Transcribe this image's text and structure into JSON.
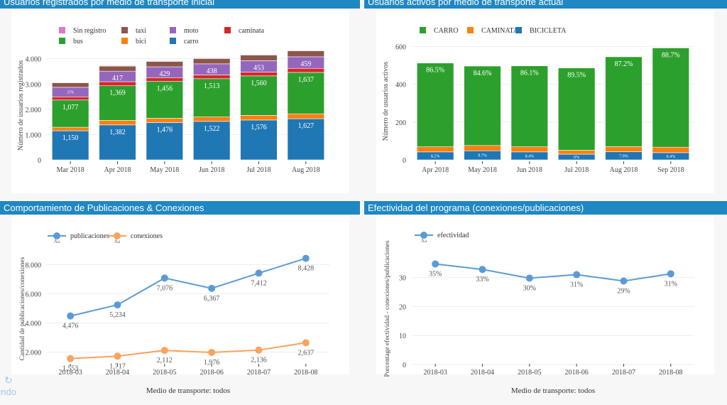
{
  "panels": [
    {
      "title": "Usuarios registrados por medio de transporte inicial"
    },
    {
      "title": "Usuarios activos por medio de transporte actual"
    },
    {
      "title": "Comportamiento de Publicaciones & Conexiones"
    },
    {
      "title": "Efectividad del programa (conexiones/publicaciones)"
    }
  ],
  "undo": {
    "label": "undo",
    "icon": "undo-icon"
  },
  "chart_data": [
    {
      "type": "bar",
      "stacked": true,
      "title": "Usuarios registrados por medio de transporte inicial",
      "ylabel": "Número de usuarios registrados",
      "xlabel": "",
      "ylim": [
        0,
        4300
      ],
      "yticks": [
        0,
        1000,
        2000,
        3000,
        4000
      ],
      "ytick_labels": [
        "0",
        "1.000",
        "2.000",
        "3.000",
        "4.000"
      ],
      "categories": [
        "Mar 2018",
        "Apr 2018",
        "May 2018",
        "Jun 2018",
        "Jul 2018",
        "Aug 2018"
      ],
      "legend": [
        "Sin registro",
        "taxi",
        "moto",
        "caminata",
        "bus",
        "bici",
        "carro"
      ],
      "legend_position": "top-left",
      "series": [
        {
          "name": "carro",
          "color": "#1f77b4",
          "values": [
            1150,
            1382,
            1476,
            1522,
            1576,
            1627
          ],
          "labels": [
            "1,150",
            "1,382",
            "1,476",
            "1,522",
            "1,576",
            "1,627"
          ]
        },
        {
          "name": "bici",
          "color": "#ff7f0e",
          "values": [
            140,
            180,
            170,
            175,
            185,
            195
          ],
          "labels": [
            "",
            "",
            "",
            "",
            "",
            ""
          ]
        },
        {
          "name": "bus",
          "color": "#2ca02c",
          "values": [
            1077,
            1369,
            1456,
            1513,
            1560,
            1637
          ],
          "labels": [
            "1,077",
            "1,369",
            "1,456",
            "1,513",
            "1,560",
            "1,637"
          ]
        },
        {
          "name": "caminata",
          "color": "#d62728",
          "values": [
            127,
            160,
            150,
            150,
            150,
            160
          ],
          "labels": [
            "",
            "",
            "",
            "",
            "",
            ""
          ]
        },
        {
          "name": "moto",
          "color": "#9467bd",
          "values": [
            376,
            417,
            429,
            438,
            453,
            459
          ],
          "labels": [
            "376",
            "417",
            "429",
            "438",
            "453",
            "459"
          ]
        },
        {
          "name": "taxi",
          "color": "#8c564b",
          "values": [
            180,
            200,
            210,
            210,
            220,
            230
          ],
          "labels": [
            "",
            "",
            "",
            "",
            "",
            ""
          ]
        },
        {
          "name": "Sin registro",
          "color": "#e377c2",
          "values": [
            20,
            25,
            25,
            25,
            25,
            25
          ],
          "labels": [
            "",
            "",
            "",
            "",
            "",
            ""
          ]
        }
      ]
    },
    {
      "type": "bar",
      "stacked": true,
      "title": "Usuarios activos por medio de transporte actual",
      "ylabel": "Número de usuarios activos",
      "xlabel": "",
      "ylim": [
        0,
        620
      ],
      "yticks": [
        0,
        200,
        400,
        600
      ],
      "ytick_labels": [
        "0",
        "200",
        "400",
        "600"
      ],
      "categories": [
        "Apr 2018",
        "May 2018",
        "Jun 2018",
        "Jul 2018",
        "Aug 2018",
        "Sep 2018"
      ],
      "legend": [
        "CARRO",
        "CAMINATA",
        "BICICLETA"
      ],
      "legend_position": "top-left",
      "series": [
        {
          "name": "BICICLETA",
          "color": "#1f77b4",
          "values": [
            42,
            48,
            42,
            30,
            43,
            38
          ],
          "labels": [
            "8.2%",
            "9.7%",
            "8.4%",
            "6%",
            "7.9%",
            "6.4%"
          ]
        },
        {
          "name": "CAMINATA",
          "color": "#ff7f0e",
          "values": [
            27,
            28,
            27,
            21,
            27,
            29
          ],
          "labels": [
            "",
            "",
            "",
            "",
            "",
            ""
          ]
        },
        {
          "name": "CARRO",
          "color": "#2ca02c",
          "values": [
            443,
            420,
            428,
            435,
            475,
            525
          ],
          "labels": [
            "86.5%",
            "84.6%",
            "86.1%",
            "89.5%",
            "87.2%",
            "88.7%"
          ]
        }
      ]
    },
    {
      "type": "line",
      "title": "Comportamiento de Publicaciones & Conexiones",
      "ylabel": "Cantidad de publicaciones/conexiones",
      "xlabel": "Medio de transporte: todos",
      "ylim": [
        1000,
        8700
      ],
      "yticks": [
        2000,
        4000,
        6000,
        8000
      ],
      "ytick_labels": [
        "2.000",
        "4.000",
        "6.000",
        "8.000"
      ],
      "x": [
        "2018-03",
        "2018-04",
        "2018-05",
        "2018-06",
        "2018-07",
        "2018-08"
      ],
      "legend_position": "top-left",
      "legend_sub": "Aa",
      "series": [
        {
          "name": "publicaciones",
          "color": "#5b9bd5",
          "values": [
            4476,
            5234,
            7076,
            6367,
            7412,
            8428
          ],
          "labels": [
            "4,476",
            "5,234",
            "7,076",
            "6,367",
            "7,412",
            "8,428"
          ]
        },
        {
          "name": "conexiones",
          "color": "#f9a35c",
          "values": [
            1553,
            1717,
            2112,
            1976,
            2136,
            2637
          ],
          "labels": [
            "1,553",
            "1,717",
            "2,112",
            "1,976",
            "2,136",
            "2,637"
          ]
        }
      ]
    },
    {
      "type": "line",
      "title": "Efectividad del programa (conexiones/publicaciones)",
      "ylabel": "Porcentage efectividad - conexiones/publicaciones",
      "xlabel": "Medio de transporte: todos",
      "ylim": [
        0,
        38
      ],
      "yticks": [
        0,
        10,
        20,
        30
      ],
      "ytick_labels": [
        "0",
        "10",
        "20",
        "30"
      ],
      "x": [
        "2018-03",
        "2018-04",
        "2018-05",
        "2018-06",
        "2018-07",
        "2018-08"
      ],
      "legend_position": "top-left",
      "legend_sub": "Aa",
      "series": [
        {
          "name": "efectividad",
          "color": "#5b9bd5",
          "values": [
            34.7,
            32.8,
            29.8,
            31.0,
            28.8,
            31.3
          ],
          "labels": [
            "35%",
            "33%",
            "30%",
            "31%",
            "29%",
            "31%"
          ]
        }
      ]
    }
  ]
}
